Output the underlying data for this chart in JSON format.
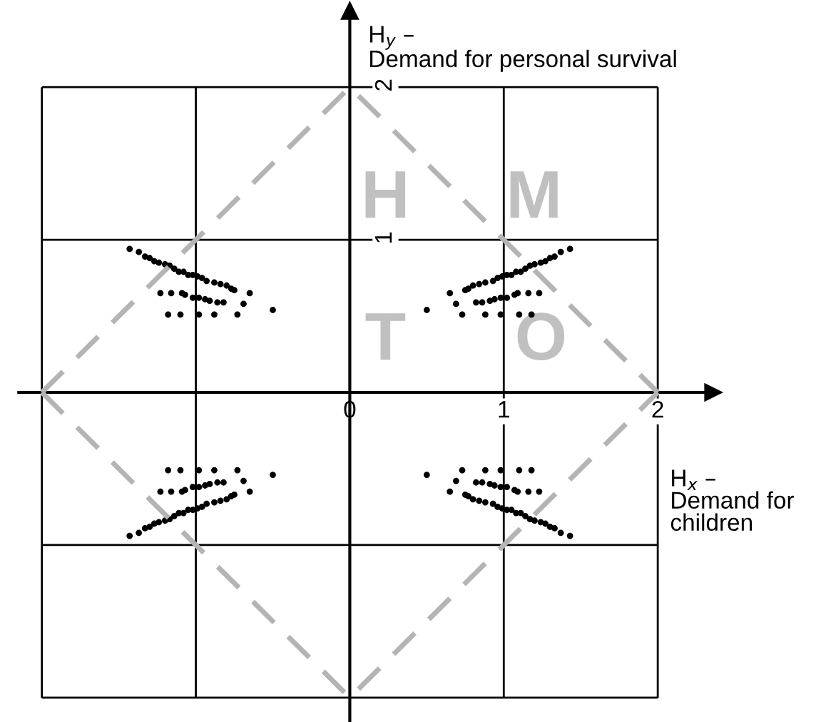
{
  "chart_data": {
    "type": "scatter",
    "xlabel": "H$_{x}$ –\nDemand for\nchildren",
    "ylabel": "H$_{y}$ –\nDemand for personal survival",
    "xlim": [
      -2.15,
      2.36
    ],
    "ylim": [
      -2.15,
      2.5
    ],
    "xticks": [
      {
        "value": -2,
        "label": null
      },
      {
        "value": -1,
        "label": null
      },
      0,
      1,
      2
    ],
    "yticks": [
      {
        "value": -2,
        "label": null
      },
      {
        "value": -1,
        "label": null
      },
      {
        "value": 0,
        "label": null
      },
      1,
      2
    ],
    "grid": true,
    "marker": "circle",
    "annotations": [
      "H",
      "M",
      "T",
      "O"
    ],
    "series": [
      {
        "color": "#000000",
        "x": [
          1.43,
          1.37,
          1.33,
          1.3,
          1.27,
          1.24,
          1.2,
          1.17,
          1.14,
          1.11,
          1.08,
          1.05,
          1.02,
          0.99,
          0.96,
          0.93,
          0.88,
          0.84,
          0.8,
          0.77,
          0.75,
          0.65,
          0.69,
          0.73,
          0.5,
          0.82,
          0.86,
          0.91,
          0.94,
          0.98,
          1.02,
          1.07,
          1.09,
          1.16,
          1.23,
          0.88,
          0.98,
          1.1,
          1.18
        ],
        "values": [
          0.94,
          0.92,
          0.89,
          0.88,
          0.86,
          0.85,
          0.84,
          0.83,
          0.81,
          0.79,
          0.79,
          0.77,
          0.77,
          0.76,
          0.75,
          0.73,
          0.72,
          0.71,
          0.7,
          0.68,
          0.67,
          0.65,
          0.58,
          0.51,
          0.54,
          0.59,
          0.59,
          0.6,
          0.61,
          0.62,
          0.62,
          0.64,
          0.65,
          0.65,
          0.65,
          0.51,
          0.51,
          0.51,
          0.51
        ]
      },
      {
        "color": "#000000",
        "x": [
          -1.43,
          -1.37,
          -1.33,
          -1.3,
          -1.27,
          -1.24,
          -1.2,
          -1.17,
          -1.14,
          -1.11,
          -1.08,
          -1.05,
          -1.02,
          -0.99,
          -0.96,
          -0.93,
          -0.88,
          -0.84,
          -0.8,
          -0.77,
          -0.75,
          -0.65,
          -0.69,
          -0.73,
          -0.5,
          -0.82,
          -0.86,
          -0.91,
          -0.94,
          -0.98,
          -1.02,
          -1.07,
          -1.09,
          -1.16,
          -1.23,
          -0.88,
          -0.98,
          -1.1,
          -1.18
        ],
        "values": [
          0.94,
          0.92,
          0.89,
          0.88,
          0.86,
          0.85,
          0.84,
          0.83,
          0.81,
          0.79,
          0.79,
          0.77,
          0.77,
          0.76,
          0.75,
          0.73,
          0.72,
          0.71,
          0.7,
          0.68,
          0.67,
          0.65,
          0.58,
          0.51,
          0.54,
          0.59,
          0.59,
          0.6,
          0.61,
          0.62,
          0.62,
          0.64,
          0.65,
          0.65,
          0.65,
          0.51,
          0.51,
          0.51,
          0.51
        ]
      },
      {
        "color": "#000000",
        "x": [
          -1.43,
          -1.37,
          -1.33,
          -1.3,
          -1.27,
          -1.24,
          -1.2,
          -1.17,
          -1.14,
          -1.11,
          -1.08,
          -1.05,
          -1.02,
          -0.99,
          -0.96,
          -0.93,
          -0.88,
          -0.84,
          -0.8,
          -0.77,
          -0.75,
          -0.65,
          -0.69,
          -0.73,
          -0.5,
          -0.82,
          -0.86,
          -0.91,
          -0.94,
          -0.98,
          -1.02,
          -1.07,
          -1.09,
          -1.16,
          -1.23,
          -0.88,
          -0.98,
          -1.1,
          -1.18
        ],
        "values": [
          -0.94,
          -0.92,
          -0.89,
          -0.88,
          -0.86,
          -0.85,
          -0.84,
          -0.83,
          -0.81,
          -0.79,
          -0.79,
          -0.77,
          -0.77,
          -0.76,
          -0.75,
          -0.73,
          -0.72,
          -0.71,
          -0.7,
          -0.68,
          -0.67,
          -0.65,
          -0.58,
          -0.51,
          -0.54,
          -0.59,
          -0.59,
          -0.6,
          -0.61,
          -0.62,
          -0.62,
          -0.64,
          -0.65,
          -0.65,
          -0.65,
          -0.51,
          -0.51,
          -0.51,
          -0.51
        ]
      },
      {
        "color": "#000000",
        "x": [
          1.43,
          1.37,
          1.33,
          1.3,
          1.27,
          1.24,
          1.2,
          1.17,
          1.14,
          1.11,
          1.08,
          1.05,
          1.02,
          0.99,
          0.96,
          0.93,
          0.88,
          0.84,
          0.8,
          0.77,
          0.75,
          0.65,
          0.69,
          0.73,
          0.5,
          0.82,
          0.86,
          0.91,
          0.94,
          0.98,
          1.02,
          1.07,
          1.09,
          1.16,
          1.23,
          0.88,
          0.98,
          1.1,
          1.18
        ],
        "values": [
          -0.94,
          -0.92,
          -0.89,
          -0.88,
          -0.86,
          -0.85,
          -0.84,
          -0.83,
          -0.81,
          -0.79,
          -0.79,
          -0.77,
          -0.77,
          -0.76,
          -0.75,
          -0.73,
          -0.72,
          -0.71,
          -0.7,
          -0.68,
          -0.67,
          -0.65,
          -0.58,
          -0.51,
          -0.54,
          -0.59,
          -0.59,
          -0.6,
          -0.61,
          -0.62,
          -0.62,
          -0.64,
          -0.65,
          -0.65,
          -0.65,
          -0.51,
          -0.51,
          -0.51,
          -0.51
        ]
      },
      {
        "type": "line",
        "marker": "none",
        "line_style": "dashed",
        "color": "#b4b4b4",
        "x": [
          -2,
          0,
          2
        ],
        "values": [
          0,
          2,
          0
        ]
      },
      {
        "type": "line",
        "marker": "none",
        "line_style": "dashed",
        "color": "#b4b4b4",
        "x": [
          -2,
          0,
          2
        ],
        "values": [
          0,
          -2,
          0
        ]
      }
    ]
  }
}
